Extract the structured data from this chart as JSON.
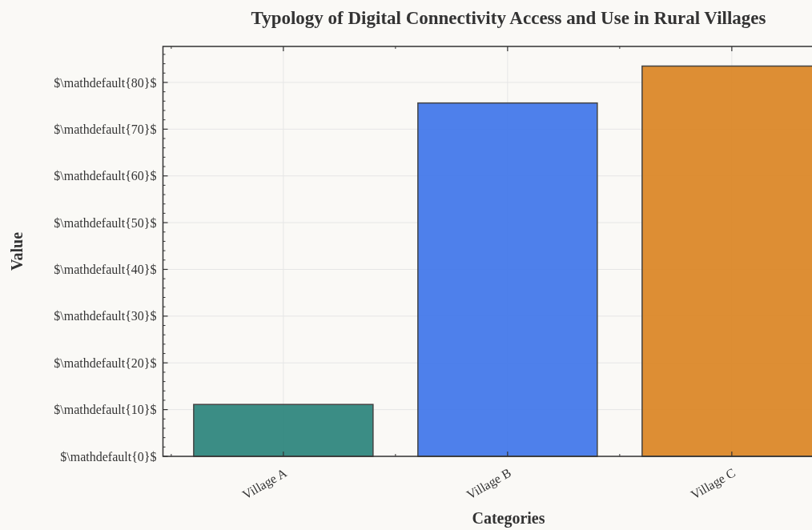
{
  "chart_data": {
    "type": "bar",
    "title": "Typology of Digital Connectivity Access and Use in Rural Villages",
    "xlabel": "Categories",
    "ylabel": "Value",
    "categories": [
      "Village A",
      "Village B",
      "Village C"
    ],
    "values": [
      11.1,
      75.6,
      83.5
    ],
    "colors": [
      "#30877e",
      "#4479ea",
      "#db8829"
    ],
    "ylim": [
      0,
      87.7
    ],
    "yticks": [
      {
        "value": 0,
        "label": "$\\mathdefault{0}$"
      },
      {
        "value": 10,
        "label": "$\\mathdefault{10}$"
      },
      {
        "value": 20,
        "label": "$\\mathdefault{20}$"
      },
      {
        "value": 30,
        "label": "$\\mathdefault{30}$"
      },
      {
        "value": 40,
        "label": "$\\mathdefault{40}$"
      },
      {
        "value": 50,
        "label": "$\\mathdefault{50}$"
      },
      {
        "value": 60,
        "label": "$\\mathdefault{60}$"
      },
      {
        "value": 70,
        "label": "$\\mathdefault{70}$"
      },
      {
        "value": 80,
        "label": "$\\mathdefault{80}$"
      }
    ],
    "grid": true
  }
}
